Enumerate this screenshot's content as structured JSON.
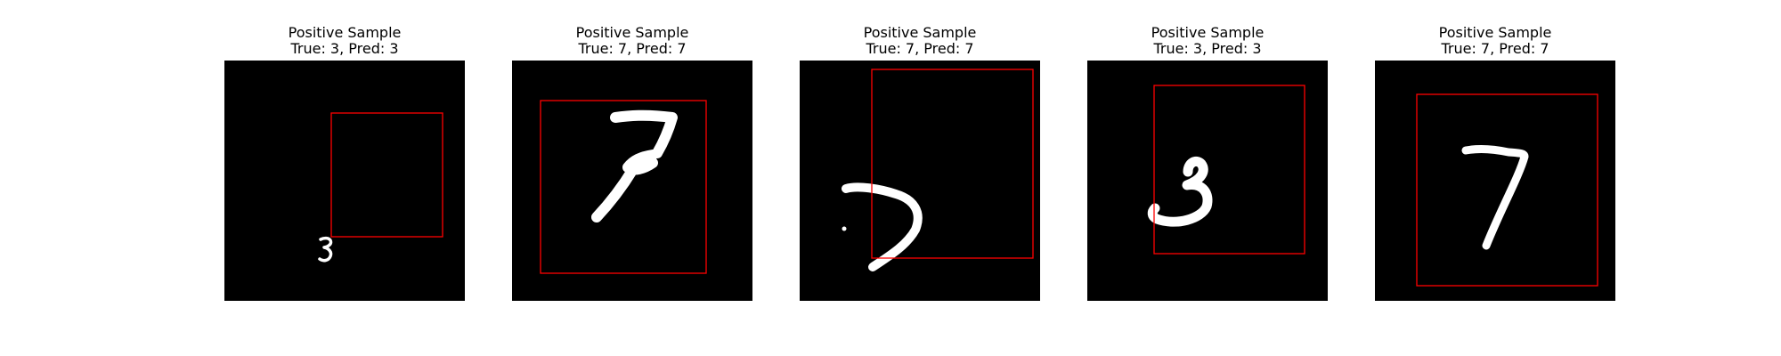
{
  "figure": {
    "background": "#ffffff",
    "image_background": "#000000",
    "box_color": "#ff0000",
    "digit_color": "#ffffff"
  },
  "panels": [
    {
      "title": "Positive Sample",
      "subtitle": "True: 3, Pred: 3",
      "digit": "3"
    },
    {
      "title": "Positive Sample",
      "subtitle": "True: 7, Pred: 7",
      "digit": "7"
    },
    {
      "title": "Positive Sample",
      "subtitle": "True: 7, Pred: 7",
      "digit": "7"
    },
    {
      "title": "Positive Sample",
      "subtitle": "True: 3, Pred: 3",
      "digit": "3"
    },
    {
      "title": "Positive Sample",
      "subtitle": "True: 7, Pred: 7",
      "digit": "7"
    }
  ]
}
